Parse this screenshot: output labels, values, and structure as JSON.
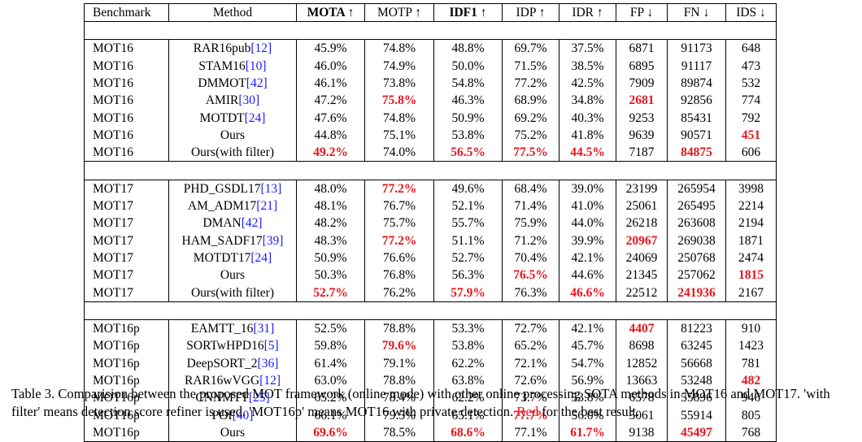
{
  "table": {
    "headers": [
      {
        "label": "Benchmark",
        "bold": false
      },
      {
        "label": "Method",
        "bold": false
      },
      {
        "label": "MOTA ↑",
        "bold": true
      },
      {
        "label": "MOTP ↑",
        "bold": false
      },
      {
        "label": "IDF1 ↑",
        "bold": true
      },
      {
        "label": "IDP ↑",
        "bold": false
      },
      {
        "label": "IDR ↑",
        "bold": false
      },
      {
        "label": "FP ↓",
        "bold": false
      },
      {
        "label": "FN ↓",
        "bold": false
      },
      {
        "label": "IDS ↓",
        "bold": false
      }
    ],
    "groups": [
      {
        "rows": [
          {
            "benchmark": "MOT16",
            "method": "RAR16pub",
            "ref": "[12]",
            "cells": [
              "45.9%",
              "74.8%",
              "48.8%",
              "69.7%",
              "37.5%",
              "6871",
              "91173",
              "648"
            ],
            "best": []
          },
          {
            "benchmark": "MOT16",
            "method": "STAM16",
            "ref": "[10]",
            "cells": [
              "46.0%",
              "74.9%",
              "50.0%",
              "71.5%",
              "38.5%",
              "6895",
              "91117",
              "473"
            ],
            "best": []
          },
          {
            "benchmark": "MOT16",
            "method": "DMMOT",
            "ref": "[42]",
            "cells": [
              "46.1%",
              "73.8%",
              "54.8%",
              "77.2%",
              "42.5%",
              "7909",
              "89874",
              "532"
            ],
            "best": []
          },
          {
            "benchmark": "MOT16",
            "method": "AMIR",
            "ref": "[30]",
            "cells": [
              "47.2%",
              "75.8%",
              "46.3%",
              "68.9%",
              "34.8%",
              "2681",
              "92856",
              "774"
            ],
            "best": [
              1,
              5
            ]
          },
          {
            "benchmark": "MOT16",
            "method": "MOTDT",
            "ref": "[24]",
            "cells": [
              "47.6%",
              "74.8%",
              "50.9%",
              "69.2%",
              "40.3%",
              "9253",
              "85431",
              "792"
            ],
            "best": []
          },
          {
            "benchmark": "MOT16",
            "method": "Ours",
            "ref": "",
            "cells": [
              "44.8%",
              "75.1%",
              "53.8%",
              "75.2%",
              "41.8%",
              "9639",
              "90571",
              "451"
            ],
            "best": [
              7
            ]
          },
          {
            "benchmark": "MOT16",
            "method": "Ours(with filter)",
            "ref": "",
            "cells": [
              "49.2%",
              "74.0%",
              "56.5%",
              "77.5%",
              "44.5%",
              "7187",
              "84875",
              "606"
            ],
            "best": [
              0,
              2,
              3,
              4,
              6
            ]
          }
        ]
      },
      {
        "rows": [
          {
            "benchmark": "MOT17",
            "method": "PHD_GSDL17",
            "ref": "[13]",
            "cells": [
              "48.0%",
              "77.2%",
              "49.6%",
              "68.4%",
              "39.0%",
              "23199",
              "265954",
              "3998"
            ],
            "best": [
              1
            ]
          },
          {
            "benchmark": "MOT17",
            "method": "AM_ADM17",
            "ref": "[21]",
            "cells": [
              "48.1%",
              "76.7%",
              "52.1%",
              "71.4%",
              "41.0%",
              "25061",
              "265495",
              "2214"
            ],
            "best": []
          },
          {
            "benchmark": "MOT17",
            "method": "DMAN",
            "ref": "[42]",
            "cells": [
              "48.2%",
              "75.7%",
              "55.7%",
              "75.9%",
              "44.0%",
              "26218",
              "263608",
              "2194"
            ],
            "best": []
          },
          {
            "benchmark": "MOT17",
            "method": "HAM_SADF17",
            "ref": "[39]",
            "cells": [
              "48.3%",
              "77.2%",
              "51.1%",
              "71.2%",
              "39.9%",
              "20967",
              "269038",
              "1871"
            ],
            "best": [
              1,
              5
            ]
          },
          {
            "benchmark": "MOT17",
            "method": "MOTDT17",
            "ref": "[24]",
            "cells": [
              "50.9%",
              "76.6%",
              "52.7%",
              "70.4%",
              "42.1%",
              "24069",
              "250768",
              "2474"
            ],
            "best": []
          },
          {
            "benchmark": "MOT17",
            "method": "Ours",
            "ref": "",
            "cells": [
              "50.3%",
              "76.8%",
              "56.3%",
              "76.5%",
              "44.6%",
              "21345",
              "257062",
              "1815"
            ],
            "best": [
              3,
              7
            ]
          },
          {
            "benchmark": "MOT17",
            "method": "Ours(with filter)",
            "ref": "",
            "cells": [
              "52.7%",
              "76.2%",
              "57.9%",
              "76.3%",
              "46.6%",
              "22512",
              "241936",
              "2167"
            ],
            "best": [
              0,
              2,
              4,
              6
            ]
          }
        ]
      },
      {
        "rows": [
          {
            "benchmark": "MOT16p",
            "method": "EAMTT_16",
            "ref": "[31]",
            "cells": [
              "52.5%",
              "78.8%",
              "53.3%",
              "72.7%",
              "42.1%",
              "4407",
              "81223",
              "910"
            ],
            "best": [
              5
            ]
          },
          {
            "benchmark": "MOT16p",
            "method": "SORTwHPD16",
            "ref": "[5]",
            "cells": [
              "59.8%",
              "79.6%",
              "53.8%",
              "65.2%",
              "45.7%",
              "8698",
              "63245",
              "1423"
            ],
            "best": [
              1
            ]
          },
          {
            "benchmark": "MOT16p",
            "method": "DeepSORT_2",
            "ref": "[36]",
            "cells": [
              "61.4%",
              "79.1%",
              "62.2%",
              "72.1%",
              "54.7%",
              "12852",
              "56668",
              "781"
            ],
            "best": []
          },
          {
            "benchmark": "MOT16p",
            "method": "RAR16wVGG",
            "ref": "[12]",
            "cells": [
              "63.0%",
              "78.8%",
              "63.8%",
              "72.6%",
              "56.9%",
              "13663",
              "53248",
              "482"
            ],
            "best": [
              7
            ]
          },
          {
            "benchmark": "MOT16p",
            "method": "CNNMTT",
            "ref": "[25]",
            "cells": [
              "65.2%",
              "78.4%",
              "62.2%",
              "73.7%",
              "53.8%",
              "6578",
              "55896",
              "946"
            ],
            "best": []
          },
          {
            "benchmark": "MOT16p",
            "method": "POI",
            "ref": "[40]",
            "cells": [
              "66.1%",
              "79.5%",
              "65.1%",
              "77.7%",
              "56.0%",
              "5061",
              "55914",
              "805"
            ],
            "best": [
              3
            ]
          },
          {
            "benchmark": "MOT16p",
            "method": "Ours",
            "ref": "",
            "cells": [
              "69.6%",
              "78.5%",
              "68.6%",
              "77.1%",
              "61.7%",
              "9138",
              "45497",
              "768"
            ],
            "best": [
              0,
              2,
              4,
              6
            ]
          }
        ]
      }
    ]
  },
  "caption": {
    "main": "Table 3. Comparision between the proposed MOT framework (online mode) with other online processing SOTA methods in MOT16 and MOT17. 'with filter' means detection score refiner is used. 'MOT16p' means MOT16 with private detection.",
    "red_word": "Red",
    "tail": "for the best result."
  },
  "colors": {
    "best": "#e8141c",
    "ref": "#1a1aff"
  }
}
